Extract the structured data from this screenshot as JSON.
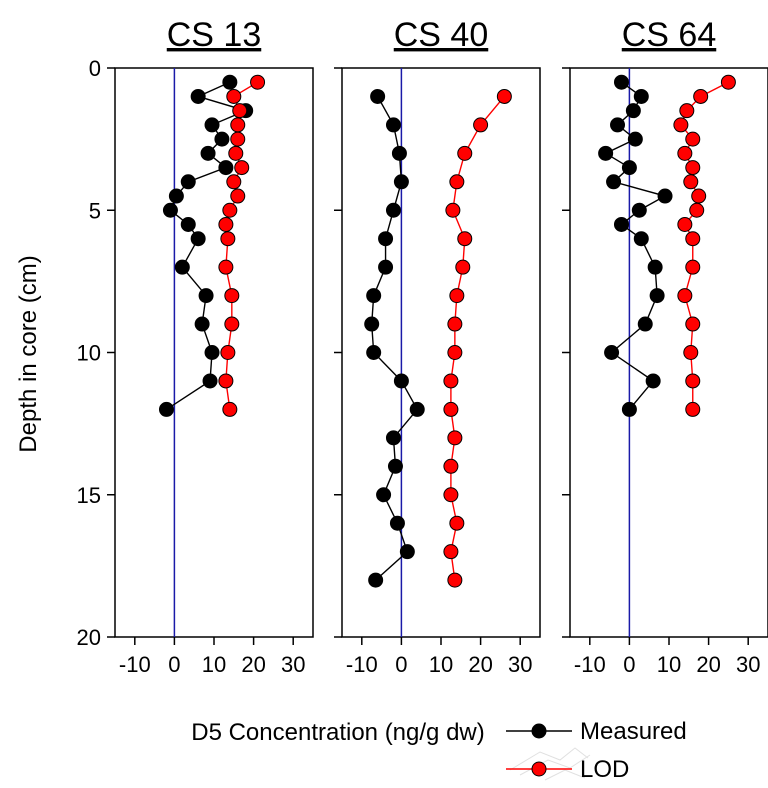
{
  "chart_data": {
    "type": "line",
    "xlabel": "D5 Concentration (ng/g dw)",
    "ylabel": "Depth in core (cm)",
    "xlim": [
      -15,
      35
    ],
    "ylim": [
      20,
      0
    ],
    "y_inverted": true,
    "x_ticks": [
      "-10",
      "0",
      "10",
      "20",
      "30"
    ],
    "y_ticks": [
      "0",
      "5",
      "10",
      "15",
      "20"
    ],
    "vertical_reference_line": {
      "x": 0,
      "color": "#1a1aa8"
    },
    "legend": {
      "placement": "bottom-right",
      "entries": [
        {
          "label": "Measured",
          "color": "#000000"
        },
        {
          "label": "LOD",
          "color": "#ff0000"
        }
      ]
    },
    "panels": [
      {
        "title": "CS 13",
        "series": [
          {
            "name": "Measured",
            "color": "#000000",
            "points": [
              [
                14,
                0.5
              ],
              [
                6,
                1.0
              ],
              [
                18,
                1.5
              ],
              [
                9.5,
                2.0
              ],
              [
                12,
                2.5
              ],
              [
                8.5,
                3.0
              ],
              [
                13,
                3.5
              ],
              [
                3.5,
                4.0
              ],
              [
                0.5,
                4.5
              ],
              [
                -1,
                5.0
              ],
              [
                3.5,
                5.5
              ],
              [
                6,
                6.0
              ],
              [
                2,
                7.0
              ],
              [
                8,
                8.0
              ],
              [
                7,
                9.0
              ],
              [
                9.5,
                10.0
              ],
              [
                9,
                11.0
              ],
              [
                -2,
                12.0
              ]
            ]
          },
          {
            "name": "LOD",
            "color": "#ff0000",
            "points": [
              [
                21,
                0.5
              ],
              [
                15,
                1.0
              ],
              [
                16.5,
                1.5
              ],
              [
                16,
                2.0
              ],
              [
                16,
                2.5
              ],
              [
                15.5,
                3.0
              ],
              [
                17,
                3.5
              ],
              [
                15,
                4.0
              ],
              [
                16,
                4.5
              ],
              [
                14,
                5.0
              ],
              [
                13,
                5.5
              ],
              [
                13.5,
                6.0
              ],
              [
                13,
                7.0
              ],
              [
                14.5,
                8.0
              ],
              [
                14.5,
                9.0
              ],
              [
                13.5,
                10.0
              ],
              [
                13,
                11.0
              ],
              [
                14,
                12.0
              ]
            ]
          }
        ]
      },
      {
        "title": "CS 40",
        "series": [
          {
            "name": "Measured",
            "color": "#000000",
            "points": [
              [
                -6,
                1.0
              ],
              [
                -2,
                2.0
              ],
              [
                -0.5,
                3.0
              ],
              [
                0,
                4.0
              ],
              [
                -2,
                5.0
              ],
              [
                -4,
                6.0
              ],
              [
                -4,
                7.0
              ],
              [
                -7,
                8.0
              ],
              [
                -7.5,
                9.0
              ],
              [
                -7,
                10.0
              ],
              [
                0,
                11.0
              ],
              [
                4,
                12.0
              ],
              [
                -2,
                13.0
              ],
              [
                -1.5,
                14.0
              ],
              [
                -4.5,
                15.0
              ],
              [
                -1,
                16.0
              ],
              [
                1.5,
                17.0
              ],
              [
                -6.5,
                18.0
              ]
            ]
          },
          {
            "name": "LOD",
            "color": "#ff0000",
            "points": [
              [
                26,
                1.0
              ],
              [
                20,
                2.0
              ],
              [
                16,
                3.0
              ],
              [
                14,
                4.0
              ],
              [
                13,
                5.0
              ],
              [
                16,
                6.0
              ],
              [
                15.5,
                7.0
              ],
              [
                14,
                8.0
              ],
              [
                13.5,
                9.0
              ],
              [
                13.5,
                10.0
              ],
              [
                12.5,
                11.0
              ],
              [
                12.5,
                12.0
              ],
              [
                13.5,
                13.0
              ],
              [
                12.5,
                14.0
              ],
              [
                12.5,
                15.0
              ],
              [
                14,
                16.0
              ],
              [
                12.5,
                17.0
              ],
              [
                13.5,
                18.0
              ]
            ]
          }
        ]
      },
      {
        "title": "CS 64",
        "series": [
          {
            "name": "Measured",
            "color": "#000000",
            "points": [
              [
                -2,
                0.5
              ],
              [
                3,
                1.0
              ],
              [
                1,
                1.5
              ],
              [
                -3,
                2.0
              ],
              [
                1.5,
                2.5
              ],
              [
                -6,
                3.0
              ],
              [
                0,
                3.5
              ],
              [
                -4,
                4.0
              ],
              [
                9,
                4.5
              ],
              [
                2.5,
                5.0
              ],
              [
                -2,
                5.5
              ],
              [
                3,
                6.0
              ],
              [
                6.5,
                7.0
              ],
              [
                7,
                8.0
              ],
              [
                4,
                9.0
              ],
              [
                -4.5,
                10.0
              ],
              [
                6,
                11.0
              ],
              [
                0,
                12.0
              ]
            ]
          },
          {
            "name": "LOD",
            "color": "#ff0000",
            "points": [
              [
                25,
                0.5
              ],
              [
                18,
                1.0
              ],
              [
                14.5,
                1.5
              ],
              [
                13,
                2.0
              ],
              [
                16,
                2.5
              ],
              [
                14,
                3.0
              ],
              [
                16,
                3.5
              ],
              [
                15.5,
                4.0
              ],
              [
                17.5,
                4.5
              ],
              [
                17,
                5.0
              ],
              [
                14,
                5.5
              ],
              [
                16,
                6.0
              ],
              [
                16,
                7.0
              ],
              [
                14,
                8.0
              ],
              [
                16,
                9.0
              ],
              [
                15.5,
                10.0
              ],
              [
                16,
                11.0
              ],
              [
                16,
                12.0
              ]
            ]
          }
        ]
      }
    ]
  }
}
